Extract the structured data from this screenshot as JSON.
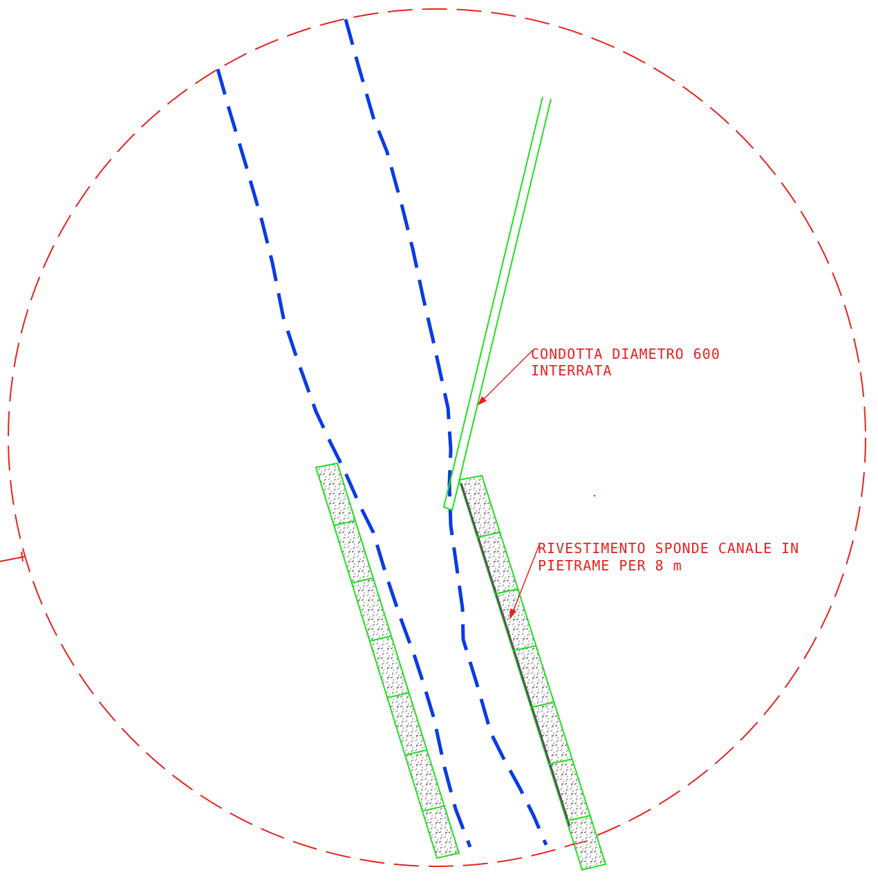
{
  "colors": {
    "background": "#ffffff",
    "boundary": "#e8201f",
    "canal_banks": "#0a3be6",
    "pipe": "#1ee11e",
    "revetment_outline": "#1ee11e",
    "revetment_hatch": "#8a8a8a",
    "annotation": "#e8201f"
  },
  "annotations": {
    "pipe_label_line1": "CONDOTTA DIAMETRO 600",
    "pipe_label_line2": "INTERRATA",
    "revetment_label_line1": "RIVESTIMENTO SPONDE CANALE IN",
    "revetment_label_line2": "PIETRAME PER 8 m"
  }
}
